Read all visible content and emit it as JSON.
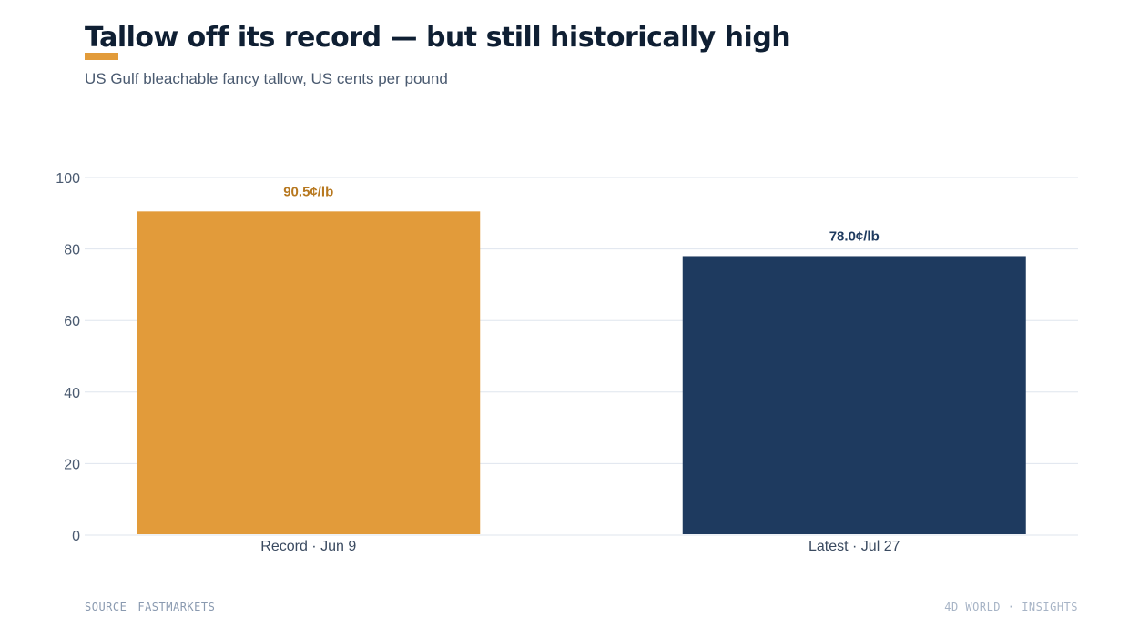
{
  "header": {
    "title": "Tallow off its record — but still historically high",
    "subtitle": "US Gulf bleachable fancy tallow, US cents per pound"
  },
  "footer": {
    "source_label": "SOURCE",
    "source_value": "FASTMARKETS",
    "brand": "4D WORLD · INSIGHTS"
  },
  "colors": {
    "accent": "#e29b3a",
    "navy": "#1e3a5f",
    "record_label": "#b7781f",
    "latest_label": "#1e3a5f",
    "grid": "#dfe5ee",
    "axis_text": "#4a5a70"
  },
  "chart_data": {
    "type": "bar",
    "categories": [
      "Record · Jun 9",
      "Latest · Jul 27"
    ],
    "values": [
      90.5,
      78.0
    ],
    "data_labels": [
      "90.5¢/lb",
      "78.0¢/lb"
    ],
    "bar_colors": [
      "#e29b3a",
      "#1e3a5f"
    ],
    "label_colors": [
      "#b7781f",
      "#1e3a5f"
    ],
    "ylim": [
      0,
      100
    ],
    "yticks": [
      0,
      20,
      40,
      60,
      80,
      100
    ],
    "grid": true
  }
}
